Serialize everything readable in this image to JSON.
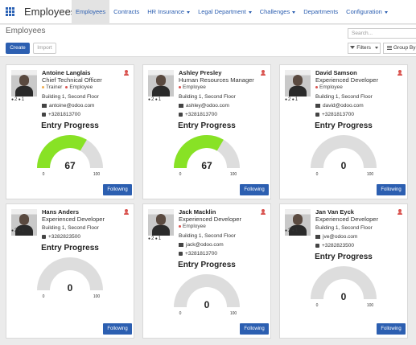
{
  "nav": {
    "brand": "Employees",
    "items": [
      {
        "label": "Employees",
        "active": true,
        "dropdown": false
      },
      {
        "label": "Contracts",
        "active": false,
        "dropdown": false
      },
      {
        "label": "HR Insurance",
        "active": false,
        "dropdown": true
      },
      {
        "label": "Legal Department",
        "active": false,
        "dropdown": true
      },
      {
        "label": "Challenges",
        "active": false,
        "dropdown": true
      },
      {
        "label": "Departments",
        "active": false,
        "dropdown": false
      },
      {
        "label": "Configuration",
        "active": false,
        "dropdown": true
      }
    ]
  },
  "control": {
    "breadcrumb": "Employees",
    "create_label": "Create",
    "import_label": "Import",
    "search_placeholder": "Search...",
    "filters_label": "Filters",
    "groupby_label": "Group By"
  },
  "colors": {
    "accent": "#2c5fb1",
    "gauge_fill": "#88e225",
    "gauge_bg": "#dddddd"
  },
  "gauge_title": "Entry Progress",
  "gauge_min": "0",
  "gauge_max": "100",
  "follow_label": "Following",
  "employees": [
    {
      "name": "Antoine Langlais",
      "job": "Chief Technical Officer",
      "tags": [
        {
          "label": "Trainer",
          "color": "orange"
        },
        {
          "label": "Employee",
          "color": "red"
        }
      ],
      "followers": "2",
      "members": "1",
      "location": "Building 1, Second Floor",
      "email": "antoine@odoo.com",
      "phone": "+3281813700",
      "progress": 67
    },
    {
      "name": "Ashley Presley",
      "job": "Human Resources Manager",
      "tags": [
        {
          "label": "Employee",
          "color": "red"
        }
      ],
      "followers": "2",
      "members": "1",
      "location": "Building 1, Second Floor",
      "email": "ashley@odoo.com",
      "phone": "+3281813700",
      "progress": 67
    },
    {
      "name": "David Samson",
      "job": "Experienced Developer",
      "tags": [
        {
          "label": "Employee",
          "color": "red"
        }
      ],
      "followers": "2",
      "members": "1",
      "location": "Building 1, Second Floor",
      "email": "david@odoo.com",
      "phone": "+3281813700",
      "progress": 0
    },
    {
      "name": "Hans Anders",
      "job": "Experienced Developer",
      "tags": [],
      "followers": "2",
      "members": "1",
      "location": "Building 1, Second Floor",
      "email": "",
      "phone": "+3282823500",
      "progress": 0
    },
    {
      "name": "Jack Macklin",
      "job": "Experienced Developer",
      "tags": [
        {
          "label": "Employee",
          "color": "red"
        }
      ],
      "followers": "2",
      "members": "1",
      "location": "Building 1, Second Floor",
      "email": "jack@odoo.com",
      "phone": "+3281813700",
      "progress": 0
    },
    {
      "name": "Jan Van Eyck",
      "job": "Experienced Developer",
      "tags": [],
      "followers": "2",
      "members": "1",
      "location": "Building 1, Second Floor",
      "email": "jve@odoo.com",
      "phone": "+3282823500",
      "progress": 0
    }
  ]
}
